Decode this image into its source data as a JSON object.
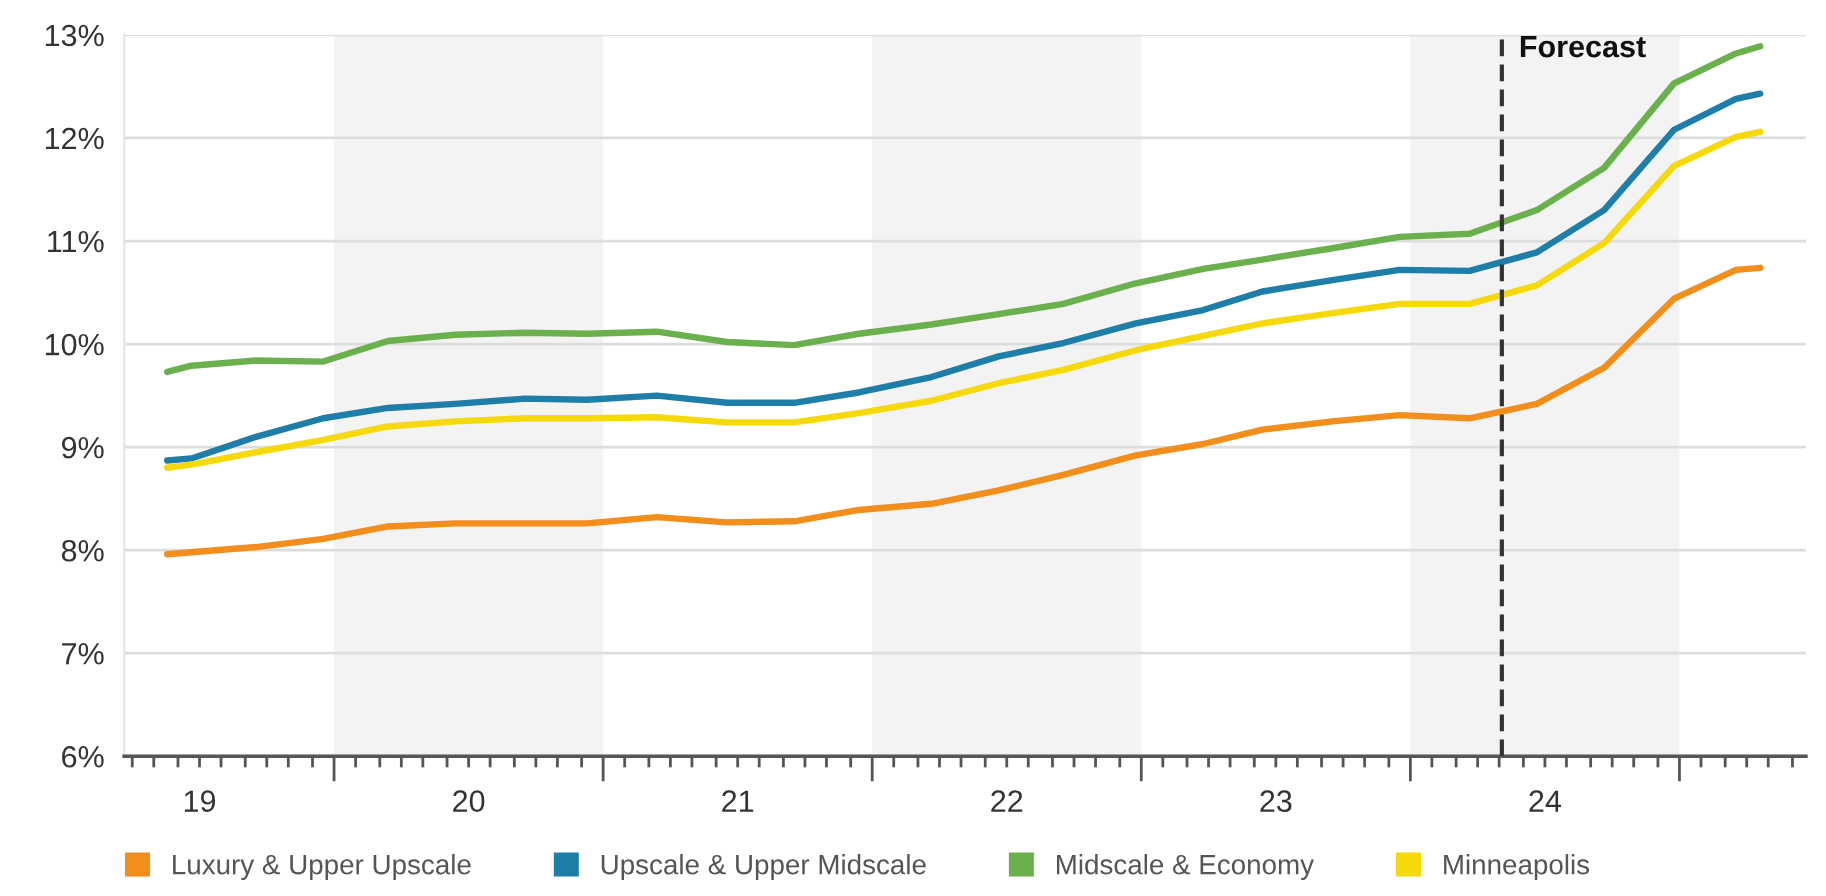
{
  "chart_data": {
    "type": "line",
    "xlim": [
      18.72,
      24.97
    ],
    "ylim": [
      6,
      13
    ],
    "xticks": [
      {
        "value": 18.75,
        "label": null
      },
      {
        "value": 18.83,
        "label": null
      },
      {
        "value": 18.92,
        "label": null
      },
      {
        "value": 19,
        "label": "19"
      },
      {
        "value": 19.08,
        "label": null
      },
      {
        "value": 19.17,
        "label": null
      },
      {
        "value": 19.25,
        "label": null
      },
      {
        "value": 19.33,
        "label": null
      },
      {
        "value": 19.42,
        "label": null
      },
      {
        "value": 19.5,
        "label": null
      },
      {
        "value": 19.58,
        "label": null
      },
      {
        "value": 19.67,
        "label": null
      },
      {
        "value": 19.75,
        "label": null
      },
      {
        "value": 19.83,
        "label": null
      },
      {
        "value": 19.92,
        "label": null
      },
      {
        "value": 20,
        "label": "20"
      },
      {
        "value": 20.08,
        "label": null
      },
      {
        "value": 20.17,
        "label": null
      },
      {
        "value": 20.25,
        "label": null
      },
      {
        "value": 20.33,
        "label": null
      },
      {
        "value": 20.42,
        "label": null
      },
      {
        "value": 20.5,
        "label": null
      },
      {
        "value": 20.58,
        "label": null
      },
      {
        "value": 20.67,
        "label": null
      },
      {
        "value": 20.75,
        "label": null
      },
      {
        "value": 20.83,
        "label": null
      },
      {
        "value": 20.92,
        "label": null
      },
      {
        "value": 21,
        "label": "21"
      },
      {
        "value": 21.08,
        "label": null
      },
      {
        "value": 21.17,
        "label": null
      },
      {
        "value": 21.25,
        "label": null
      },
      {
        "value": 21.33,
        "label": null
      },
      {
        "value": 21.42,
        "label": null
      },
      {
        "value": 21.5,
        "label": null
      },
      {
        "value": 21.58,
        "label": null
      },
      {
        "value": 21.67,
        "label": null
      },
      {
        "value": 21.75,
        "label": null
      },
      {
        "value": 21.83,
        "label": null
      },
      {
        "value": 21.92,
        "label": null
      },
      {
        "value": 22,
        "label": "22"
      },
      {
        "value": 22.08,
        "label": null
      },
      {
        "value": 22.17,
        "label": null
      },
      {
        "value": 22.25,
        "label": null
      },
      {
        "value": 22.33,
        "label": null
      },
      {
        "value": 22.42,
        "label": null
      },
      {
        "value": 22.5,
        "label": null
      },
      {
        "value": 22.58,
        "label": null
      },
      {
        "value": 22.67,
        "label": null
      },
      {
        "value": 22.75,
        "label": null
      },
      {
        "value": 22.83,
        "label": null
      },
      {
        "value": 22.92,
        "label": null
      },
      {
        "value": 23,
        "label": "23"
      },
      {
        "value": 23.08,
        "label": null
      },
      {
        "value": 23.17,
        "label": null
      },
      {
        "value": 23.25,
        "label": null
      },
      {
        "value": 23.33,
        "label": null
      },
      {
        "value": 23.42,
        "label": null
      },
      {
        "value": 23.5,
        "label": null
      },
      {
        "value": 23.58,
        "label": null
      },
      {
        "value": 23.67,
        "label": null
      },
      {
        "value": 23.75,
        "label": null
      },
      {
        "value": 23.83,
        "label": null
      },
      {
        "value": 23.92,
        "label": null
      },
      {
        "value": 24,
        "label": "24"
      },
      {
        "value": 24.08,
        "label": null
      },
      {
        "value": 24.17,
        "label": null
      },
      {
        "value": 24.25,
        "label": null
      },
      {
        "value": 24.33,
        "label": null
      },
      {
        "value": 24.42,
        "label": null
      },
      {
        "value": 24.5,
        "label": null
      },
      {
        "value": 24.58,
        "label": null
      },
      {
        "value": 24.67,
        "label": null
      },
      {
        "value": 24.75,
        "label": null
      },
      {
        "value": 24.83,
        "label": null
      },
      {
        "value": 24.92,
        "label": null
      }
    ],
    "yticks": [
      {
        "value": 6,
        "label": "6%"
      },
      {
        "value": 7,
        "label": "7%"
      },
      {
        "value": 8,
        "label": "8%"
      },
      {
        "value": 9,
        "label": "9%"
      },
      {
        "value": 10,
        "label": "10%"
      },
      {
        "value": 11,
        "label": "11%"
      },
      {
        "value": 12,
        "label": "12%"
      },
      {
        "value": 13,
        "label": "13%"
      }
    ],
    "x": [
      18.88,
      18.97,
      19.21,
      19.46,
      19.7,
      19.95,
      20.21,
      20.44,
      20.7,
      20.96,
      21.21,
      21.45,
      21.72,
      21.97,
      22.21,
      22.48,
      22.73,
      22.95,
      23.21,
      23.46,
      23.72,
      23.97,
      24.22,
      24.48,
      24.71,
      24.8
    ],
    "series": [
      {
        "name": "Luxury & Upper Upscale",
        "color": "#f28e1c",
        "values": [
          7.96,
          7.98,
          8.03,
          8.11,
          8.23,
          8.26,
          8.26,
          8.26,
          8.32,
          8.27,
          8.28,
          8.39,
          8.45,
          8.58,
          8.73,
          8.92,
          9.03,
          9.17,
          9.25,
          9.31,
          9.28,
          9.42,
          9.77,
          10.44,
          10.72,
          10.74
        ]
      },
      {
        "name": "Upscale & Upper Midscale",
        "color": "#1f7ea8",
        "values": [
          8.87,
          8.89,
          9.1,
          9.28,
          9.38,
          9.42,
          9.47,
          9.46,
          9.5,
          9.43,
          9.43,
          9.53,
          9.68,
          9.88,
          10.01,
          10.2,
          10.33,
          10.51,
          10.62,
          10.72,
          10.71,
          10.89,
          11.3,
          12.08,
          12.38,
          12.43
        ]
      },
      {
        "name": "Midscale & Economy",
        "color": "#6ab04c",
        "values": [
          9.73,
          9.79,
          9.84,
          9.83,
          10.03,
          10.09,
          10.11,
          10.1,
          10.12,
          10.02,
          9.99,
          10.1,
          10.19,
          10.29,
          10.39,
          10.59,
          10.73,
          10.82,
          10.93,
          11.04,
          11.07,
          11.3,
          11.71,
          12.53,
          12.82,
          12.89
        ]
      },
      {
        "name": "Minneapolis",
        "color": "#f5d90a",
        "values": [
          8.8,
          8.83,
          8.95,
          9.07,
          9.2,
          9.25,
          9.28,
          9.28,
          9.29,
          9.24,
          9.24,
          9.33,
          9.45,
          9.62,
          9.75,
          9.94,
          10.08,
          10.2,
          10.3,
          10.39,
          10.39,
          10.57,
          10.98,
          11.73,
          12.01,
          12.06
        ]
      }
    ],
    "bands": [
      {
        "axis": "x",
        "from": 19.5,
        "to": 20.5,
        "color": "#f3f3f3"
      },
      {
        "axis": "x",
        "from": 21.5,
        "to": 22.5,
        "color": "#f3f3f3"
      },
      {
        "axis": "x",
        "from": 23.5,
        "to": 24.5,
        "color": "#f3f3f3"
      }
    ],
    "ref_lines": [
      {
        "axis": "x",
        "value": 23.84,
        "label": "Forecast",
        "color": "#333333",
        "line_style": "dashed"
      }
    ],
    "grid": "y",
    "legend": "bottom",
    "marker": "none",
    "line_style": "solid"
  }
}
